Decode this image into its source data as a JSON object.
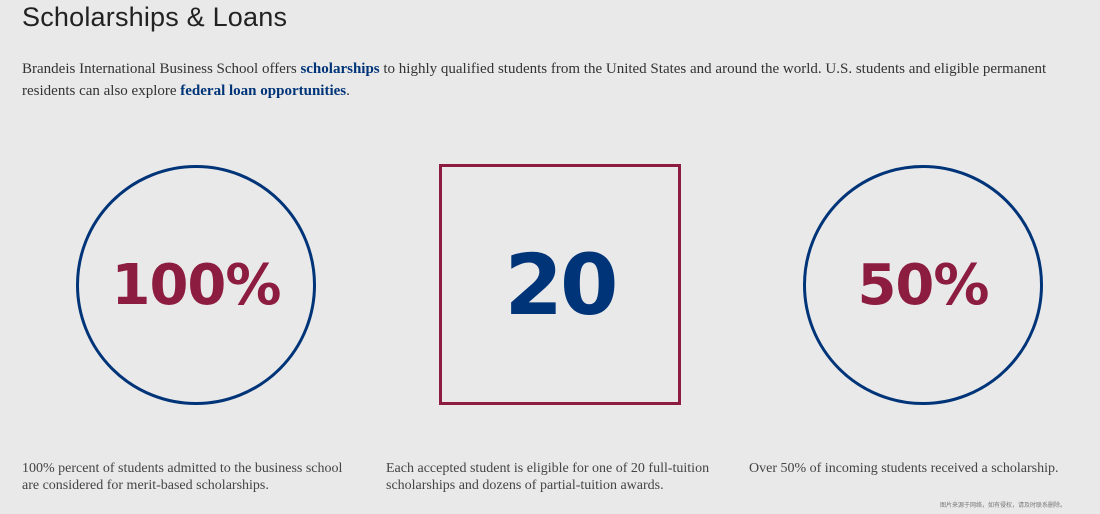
{
  "header": {
    "title": "Scholarships & Loans"
  },
  "intro": {
    "text_before_link1": "Brandeis International Business School offers ",
    "link1_label": "scholarships",
    "text_between_links": " to highly qualified students from the United States and around the world. U.S. students and eligible permanent residents can also explore ",
    "link2_label": "federal loan opportunities",
    "text_after_link2": "."
  },
  "stats": [
    {
      "value": "100%",
      "caption": "100% percent of students admitted to the business school are considered for merit-based scholarships."
    },
    {
      "value": "20",
      "caption": "Each accepted student is eligible for one of 20 full-tuition scholarships and dozens of partial-tuition awards."
    },
    {
      "value": "50%",
      "caption": "Over 50% of incoming students received a scholarship."
    }
  ],
  "watermark": "图片来源于网络，如有侵权，请及时联系删除。",
  "colors": {
    "navy": "#003478",
    "crimson": "#8c1c40",
    "background": "#e9e9e9"
  }
}
